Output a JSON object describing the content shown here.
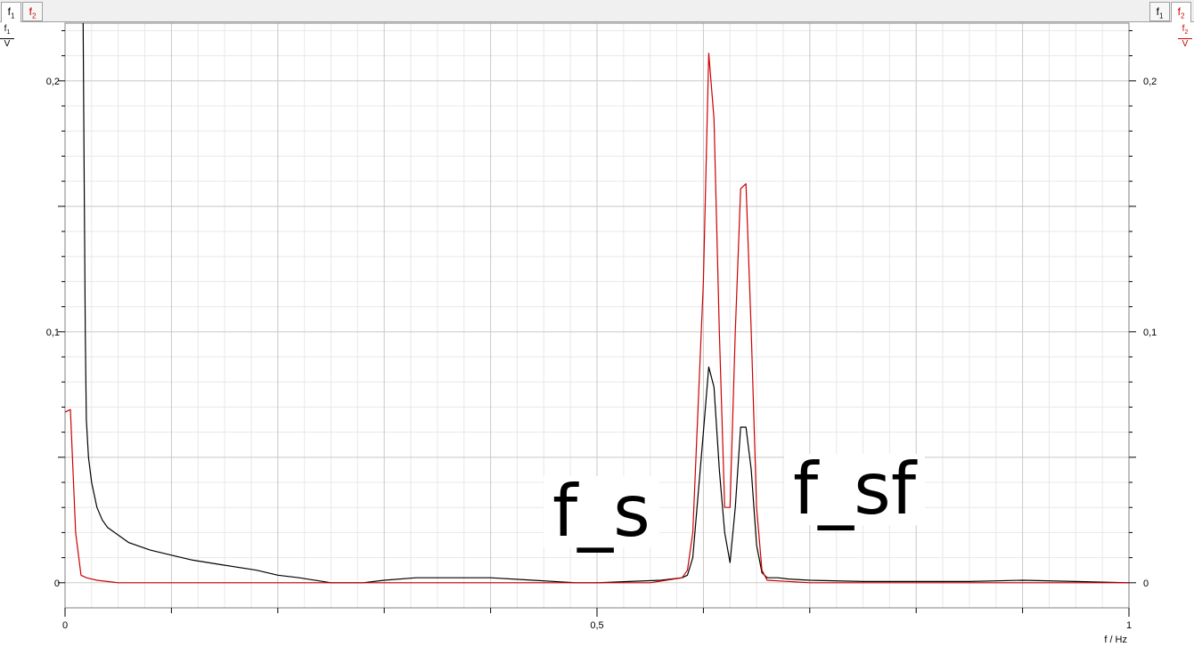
{
  "tabs_left": [
    {
      "name": "f",
      "sub": "1",
      "active": true,
      "color": "#000000"
    },
    {
      "name": "f",
      "sub": "2",
      "active": false,
      "color": "#cc0000"
    }
  ],
  "tabs_right": [
    {
      "name": "f",
      "sub": "1",
      "active": false,
      "color": "#000000"
    },
    {
      "name": "f",
      "sub": "2",
      "active": true,
      "color": "#cc0000"
    }
  ],
  "left_axis_unit": {
    "num": "f",
    "sub": "1",
    "den": "V"
  },
  "right_axis_unit": {
    "num": "f",
    "sub": "2",
    "den": "V"
  },
  "annotations": {
    "fs": "f_s",
    "fsf": "f_sf"
  },
  "chart_data": {
    "type": "line",
    "xlabel": "f / Hz",
    "xlim": [
      0,
      1.0
    ],
    "ylim": [
      -0.01,
      0.223
    ],
    "x_tick_labels": [
      {
        "value": 0,
        "label": "0"
      },
      {
        "value": 0.5,
        "label": "0,5"
      },
      {
        "value": 1.0,
        "label": "1"
      }
    ],
    "x_minor_ticks": [
      0.1,
      0.2,
      0.3,
      0.4,
      0.6,
      0.7,
      0.8,
      0.9
    ],
    "y_tick_labels": [
      {
        "value": 0,
        "label": "0"
      },
      {
        "value": 0.1,
        "label": "0,1"
      },
      {
        "value": 0.2,
        "label": "0,2"
      }
    ],
    "y_major_grid": [
      0,
      0.05,
      0.1,
      0.15,
      0.2
    ],
    "grid": true,
    "colors": {
      "f1": "#000000",
      "f2": "#cc0000",
      "grid": "#c8c8c8",
      "minor_grid": "#e8e8e8"
    },
    "series": [
      {
        "key": "f1",
        "color": "#000000",
        "x": [
          0.017,
          0.018,
          0.019,
          0.02,
          0.022,
          0.025,
          0.03,
          0.035,
          0.04,
          0.05,
          0.06,
          0.08,
          0.1,
          0.12,
          0.15,
          0.18,
          0.2,
          0.22,
          0.25,
          0.28,
          0.3,
          0.33,
          0.36,
          0.4,
          0.44,
          0.48,
          0.5,
          0.53,
          0.56,
          0.58,
          0.585,
          0.59,
          0.6,
          0.605,
          0.61,
          0.615,
          0.62,
          0.625,
          0.63,
          0.635,
          0.64,
          0.645,
          0.65,
          0.655,
          0.66,
          0.665,
          0.67,
          0.68,
          0.7,
          0.75,
          0.8,
          0.85,
          0.9,
          0.95,
          1.0
        ],
        "values": [
          0.223,
          0.16,
          0.1,
          0.065,
          0.05,
          0.04,
          0.03,
          0.025,
          0.022,
          0.019,
          0.016,
          0.013,
          0.011,
          0.009,
          0.007,
          0.005,
          0.003,
          0.002,
          0.0,
          0.0,
          0.001,
          0.002,
          0.002,
          0.002,
          0.001,
          0.0,
          0.0,
          0.0005,
          0.001,
          0.002,
          0.003,
          0.01,
          0.06,
          0.086,
          0.078,
          0.045,
          0.02,
          0.008,
          0.03,
          0.062,
          0.062,
          0.045,
          0.015,
          0.004,
          0.002,
          0.002,
          0.002,
          0.0015,
          0.001,
          0.0005,
          0.0005,
          0.0005,
          0.001,
          0.0005,
          0.0
        ]
      },
      {
        "key": "f2",
        "color": "#cc0000",
        "x": [
          0.0,
          0.005,
          0.01,
          0.015,
          0.02,
          0.03,
          0.05,
          0.1,
          0.15,
          0.2,
          0.3,
          0.4,
          0.5,
          0.55,
          0.58,
          0.585,
          0.59,
          0.6,
          0.605,
          0.61,
          0.615,
          0.62,
          0.625,
          0.63,
          0.635,
          0.64,
          0.645,
          0.65,
          0.655,
          0.66,
          0.7,
          0.8,
          0.9,
          0.95,
          1.0
        ],
        "values": [
          0.068,
          0.069,
          0.02,
          0.003,
          0.002,
          0.001,
          0.0,
          0.0,
          0.0,
          0.0,
          0.0,
          0.0,
          0.0,
          0.0,
          0.002,
          0.005,
          0.02,
          0.12,
          0.211,
          0.185,
          0.1,
          0.03,
          0.03,
          0.1,
          0.157,
          0.159,
          0.1,
          0.03,
          0.005,
          0.001,
          0.0,
          0.0,
          0.0,
          0.0,
          0.0
        ]
      }
    ]
  }
}
